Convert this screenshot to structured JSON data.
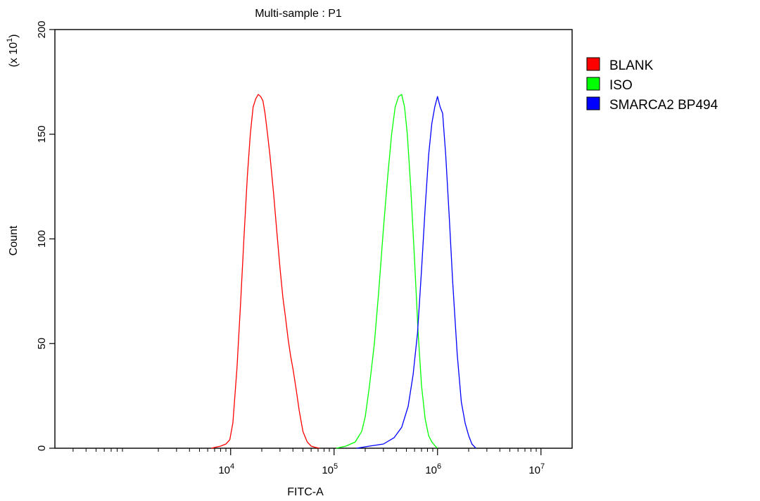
{
  "chart_data": {
    "type": "line",
    "title": "Multi-sample : P1",
    "xlabel": "FITC-A",
    "ylabel": "Count",
    "y_multiplier": "(x 10",
    "y_multiplier_exp": "1",
    "y_multiplier_close": ")",
    "x_scale": "log",
    "xlim": [
      200,
      20000000
    ],
    "ylim": [
      0,
      200
    ],
    "y_ticks": [
      0,
      50,
      100,
      150,
      200
    ],
    "y_tick_labels": [
      "0",
      "50",
      "100",
      "150",
      "200"
    ],
    "x_major_ticks": [
      10000,
      100000,
      1000000,
      10000000
    ],
    "x_tick_base": "10",
    "x_tick_exponents": [
      "4",
      "5",
      "6",
      "7"
    ],
    "legend_position": "right",
    "grid": false,
    "series": [
      {
        "name": "BLANK",
        "color": "#ff0000",
        "x": [
          6500,
          8000,
          9000,
          9800,
          10500,
          11500,
          12500,
          13500,
          14500,
          15500,
          16500,
          17500,
          18500,
          19500,
          20500,
          21500,
          22500,
          24000,
          26000,
          28000,
          30000,
          32000,
          34000,
          36000,
          38000,
          40000,
          43000,
          46000,
          50000,
          55000,
          60000,
          65000,
          72000
        ],
        "y": [
          0,
          1,
          2,
          4,
          12,
          38,
          70,
          102,
          130,
          150,
          163,
          167,
          169,
          168,
          166,
          160,
          152,
          140,
          122,
          103,
          86,
          72,
          62,
          52,
          44,
          38,
          28,
          18,
          8,
          3,
          1,
          0.5,
          0
        ]
      },
      {
        "name": "ISO",
        "color": "#00ff00",
        "x": [
          105000,
          130000,
          160000,
          185000,
          200000,
          220000,
          245000,
          270000,
          300000,
          330000,
          360000,
          390000,
          420000,
          450000,
          480000,
          510000,
          550000,
          600000,
          650000,
          700000,
          760000,
          820000,
          880000,
          950000,
          1000000
        ],
        "y": [
          0,
          1,
          3,
          8,
          15,
          30,
          50,
          75,
          105,
          130,
          150,
          163,
          168,
          169,
          163,
          150,
          125,
          90,
          55,
          30,
          14,
          6,
          3,
          1,
          0
        ]
      },
      {
        "name": "SMARCA2 BP494",
        "color": "#0000ff",
        "x": [
          165000,
          220000,
          300000,
          380000,
          450000,
          520000,
          580000,
          640000,
          700000,
          760000,
          820000,
          880000,
          940000,
          1000000,
          1060000,
          1120000,
          1200000,
          1300000,
          1400000,
          1550000,
          1700000,
          1850000,
          2000000,
          2150000,
          2350000
        ],
        "y": [
          0,
          1,
          2,
          5,
          10,
          20,
          35,
          55,
          85,
          115,
          140,
          155,
          163,
          168,
          163,
          160,
          140,
          110,
          80,
          45,
          22,
          12,
          6,
          2,
          0
        ]
      }
    ]
  }
}
